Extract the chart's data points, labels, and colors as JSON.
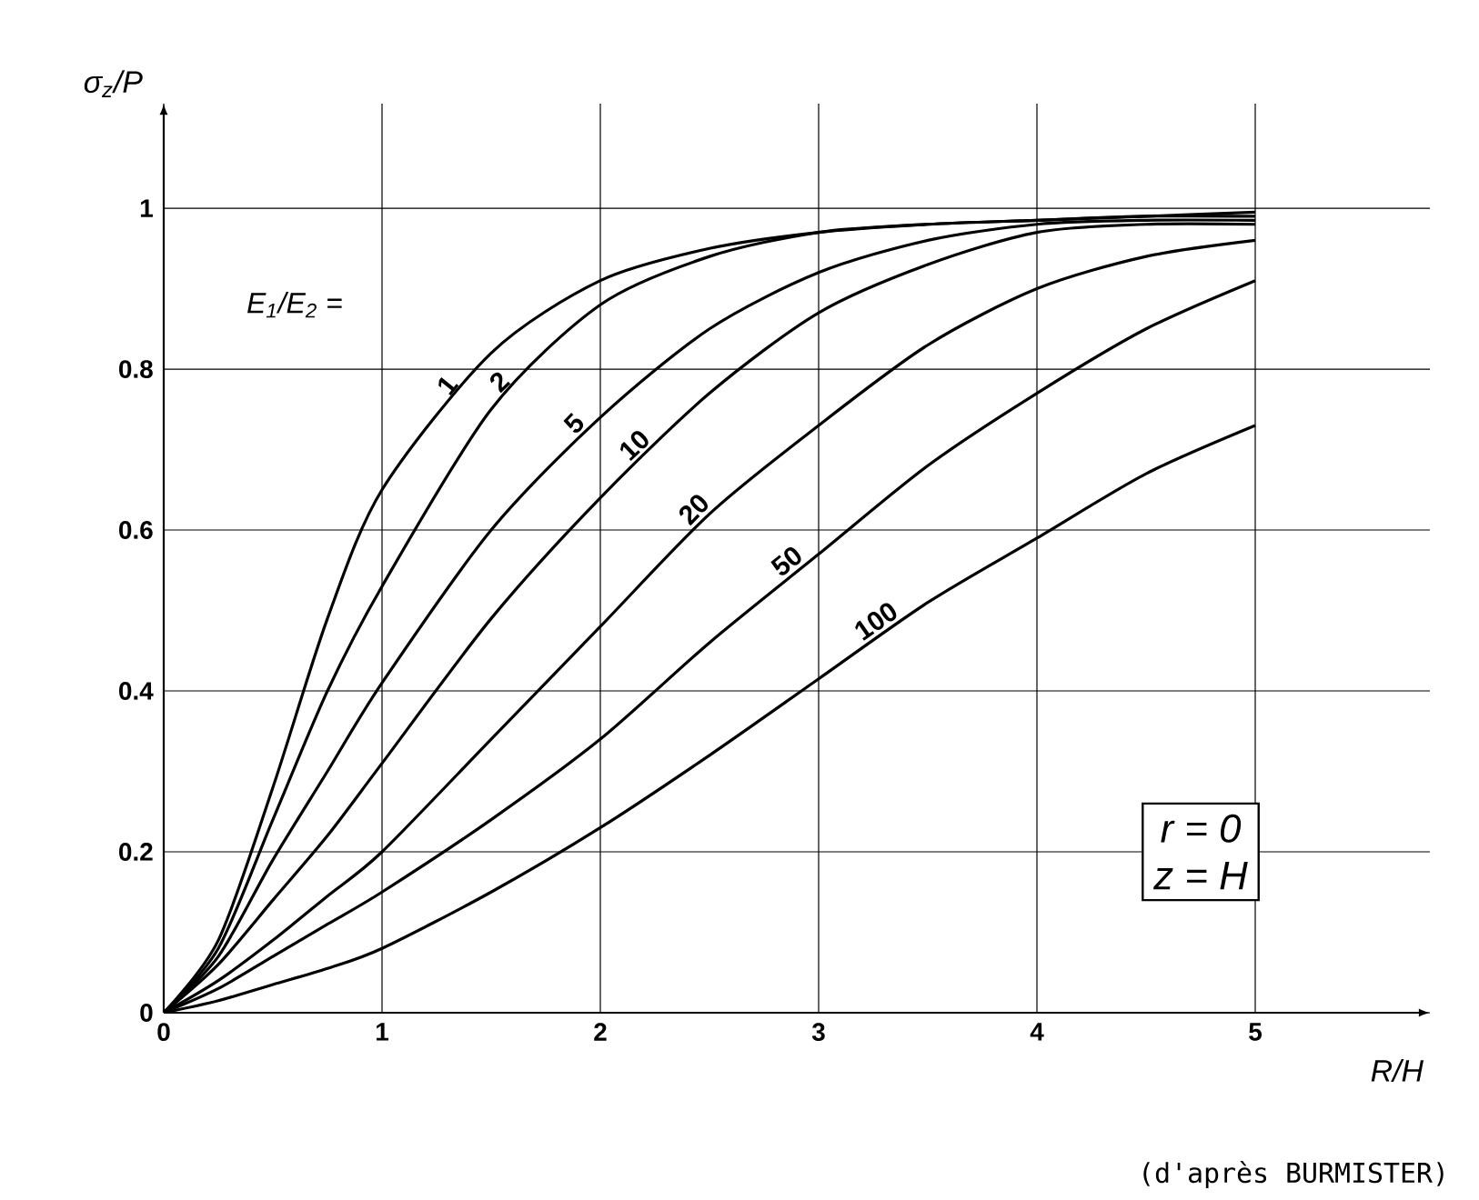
{
  "chart_data": {
    "type": "line",
    "xlabel": "R/H",
    "ylabel": "σ$_{z}$/P",
    "legend_title": "E$_{1}$/E$_{2}$ =",
    "x": [
      0,
      0.25,
      0.5,
      0.75,
      1,
      1.5,
      2,
      2.5,
      3,
      3.5,
      4,
      4.5,
      5
    ],
    "series": [
      {
        "name": "1",
        "color": "#000000",
        "values": [
          0,
          0.09,
          0.28,
          0.49,
          0.65,
          0.82,
          0.91,
          0.95,
          0.97,
          0.98,
          0.985,
          0.99,
          0.995
        ]
      },
      {
        "name": "2",
        "color": "#000000",
        "values": [
          0,
          0.08,
          0.24,
          0.4,
          0.53,
          0.75,
          0.88,
          0.94,
          0.97,
          0.98,
          0.985,
          0.99,
          0.99
        ]
      },
      {
        "name": "5",
        "color": "#000000",
        "values": [
          0,
          0.07,
          0.19,
          0.3,
          0.41,
          0.6,
          0.74,
          0.85,
          0.92,
          0.96,
          0.98,
          0.985,
          0.985
        ]
      },
      {
        "name": "10",
        "color": "#000000",
        "values": [
          0,
          0.06,
          0.14,
          0.22,
          0.31,
          0.49,
          0.64,
          0.77,
          0.87,
          0.93,
          0.97,
          0.98,
          0.98
        ]
      },
      {
        "name": "20",
        "color": "#000000",
        "values": [
          0,
          0.04,
          0.09,
          0.145,
          0.2,
          0.34,
          0.48,
          0.62,
          0.73,
          0.83,
          0.9,
          0.94,
          0.96
        ]
      },
      {
        "name": "50",
        "color": "#000000",
        "values": [
          0,
          0.03,
          0.07,
          0.11,
          0.15,
          0.24,
          0.34,
          0.46,
          0.57,
          0.68,
          0.77,
          0.85,
          0.91
        ]
      },
      {
        "name": "100",
        "color": "#000000",
        "values": [
          0,
          0.015,
          0.035,
          0.055,
          0.08,
          0.15,
          0.23,
          0.32,
          0.415,
          0.51,
          0.59,
          0.67,
          0.73
        ]
      }
    ],
    "xlim": [
      0,
      5.8
    ],
    "ylim": [
      0,
      1.13
    ],
    "xticks": [
      0,
      1,
      2,
      3,
      4,
      5
    ],
    "yticks": [
      0,
      0.2,
      0.4,
      0.6,
      0.8,
      1
    ],
    "grid": true,
    "marker": "none",
    "line_style": "solid",
    "annotations": [
      "r = 0",
      "z = H",
      "(d'après BURMISTER)"
    ]
  }
}
